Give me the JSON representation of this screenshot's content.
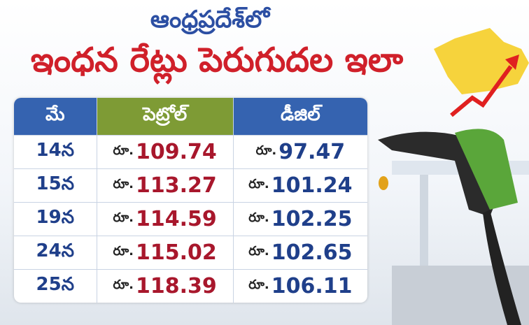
{
  "header": {
    "title_line1": "ఆంధ్రప్రదేశ్‌లో",
    "title_line2": "ఇంధన రేట్లు పెరుగుదల ఇలా"
  },
  "table": {
    "columns": [
      "మే",
      "పెట్రోల్",
      "డీజిల్"
    ],
    "rows": [
      {
        "date": "14న",
        "petrol": {
          "prefix": "రూ.",
          "amount": 109.74
        },
        "diesel": {
          "prefix": "రూ.",
          "amount": 97.47
        }
      },
      {
        "date": "15న",
        "petrol": {
          "prefix": "రూ.",
          "amount": 113.27
        },
        "diesel": {
          "prefix": "రూ.",
          "amount": 101.24
        }
      },
      {
        "date": "19న",
        "petrol": {
          "prefix": "రూ.",
          "amount": 114.59
        },
        "diesel": {
          "prefix": "రూ.",
          "amount": 102.25
        }
      },
      {
        "date": "24న",
        "petrol": {
          "prefix": "రూ.",
          "amount": 115.02
        },
        "diesel": {
          "prefix": "రూ.",
          "amount": 102.65
        }
      },
      {
        "date": "25న",
        "petrol": {
          "prefix": "రూ.",
          "amount": 118.39
        },
        "diesel": {
          "prefix": "రూ.",
          "amount": 106.11
        }
      }
    ]
  }
}
